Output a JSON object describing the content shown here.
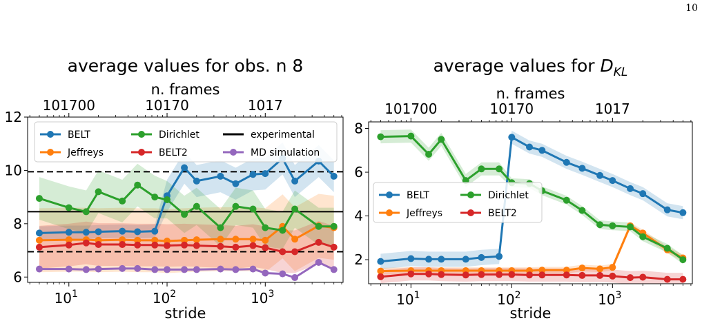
{
  "page": {
    "number": "10"
  },
  "colors": {
    "BELT": "#1f77b4",
    "Jeffreys": "#ff7f0e",
    "Dirichlet": "#2ca02c",
    "BELT2": "#d62728",
    "MD simulation": "#9467bd",
    "experimental": "#000000"
  },
  "chart_data": [
    {
      "type": "line",
      "title": "average values for obs. n 8",
      "xlabel": "stride",
      "ylabel": "",
      "xscale": "log",
      "xlim": [
        3.8,
        6200
      ],
      "ylim": [
        5.8,
        12
      ],
      "yticks": [
        6,
        8,
        10,
        12
      ],
      "ytick_labels": [
        "6",
        "8",
        "10",
        "12"
      ],
      "xticks": [
        10,
        100,
        1000
      ],
      "xtick_labels": [
        "10",
        "10",
        "10"
      ],
      "xtick_exponents": [
        "1",
        "2",
        "3"
      ],
      "top_axis": {
        "label": "n. frames",
        "ticks": [
          10,
          100,
          1000
        ],
        "tick_labels": [
          "101700",
          "10170",
          "1017"
        ]
      },
      "legend": {
        "placement": "top",
        "columns": 3
      },
      "hlines": [
        {
          "name": "experimental",
          "y": 8.45,
          "style": "solid"
        },
        {
          "name": "",
          "y": 9.95,
          "style": "dashed"
        },
        {
          "name": "",
          "y": 6.95,
          "style": "dashed"
        }
      ],
      "x": [
        5,
        10,
        15,
        20,
        35,
        50,
        75,
        100,
        150,
        200,
        350,
        500,
        750,
        1000,
        1500,
        2000,
        3500,
        5000
      ],
      "series": [
        {
          "name": "BELT",
          "color": "#1f77b4",
          "values": [
            7.65,
            7.68,
            7.68,
            7.7,
            7.72,
            7.7,
            7.72,
            9.05,
            10.1,
            9.6,
            9.78,
            9.5,
            9.85,
            9.88,
            10.45,
            9.6,
            10.35,
            9.78
          ],
          "band": [
            0.25,
            0.25,
            0.25,
            0.25,
            0.25,
            0.25,
            0.25,
            0.6,
            0.6,
            0.6,
            0.6,
            0.6,
            0.6,
            0.6,
            0.6,
            0.6,
            0.6,
            0.6
          ]
        },
        {
          "name": "Jeffreys",
          "color": "#ff7f0e",
          "values": [
            7.38,
            7.4,
            7.4,
            7.38,
            7.4,
            7.38,
            7.38,
            7.35,
            7.38,
            7.4,
            7.42,
            7.42,
            7.42,
            7.38,
            7.9,
            7.42,
            7.92,
            7.85
          ],
          "band": [
            1.2,
            1.2,
            1.2,
            1.2,
            1.2,
            1.2,
            1.2,
            1.2,
            1.2,
            1.2,
            1.2,
            1.2,
            1.2,
            1.2,
            1.2,
            1.2,
            1.2,
            1.2
          ]
        },
        {
          "name": "Dirichlet",
          "color": "#2ca02c",
          "values": [
            8.95,
            8.6,
            8.45,
            9.2,
            8.85,
            9.45,
            9.0,
            8.9,
            8.35,
            8.65,
            7.85,
            8.65,
            8.55,
            7.85,
            7.75,
            8.55,
            7.9,
            7.9
          ],
          "band": [
            0.8,
            0.8,
            0.8,
            0.8,
            0.8,
            0.8,
            0.8,
            0.7,
            0.7,
            0.7,
            0.7,
            0.7,
            0.7,
            0.7,
            0.7,
            0.7,
            0.7,
            0.7
          ]
        },
        {
          "name": "BELT2",
          "color": "#d62728",
          "values": [
            7.12,
            7.2,
            7.28,
            7.22,
            7.22,
            7.2,
            7.2,
            7.18,
            7.2,
            7.18,
            7.15,
            7.12,
            7.18,
            7.1,
            6.95,
            6.95,
            7.3,
            7.12
          ],
          "band": [
            0.8,
            0.8,
            0.8,
            0.8,
            0.8,
            0.8,
            0.8,
            0.8,
            0.8,
            0.8,
            0.8,
            0.8,
            0.8,
            0.8,
            0.8,
            0.8,
            0.8,
            0.8
          ]
        },
        {
          "name": "MD simulation",
          "color": "#9467bd",
          "values": [
            6.3,
            6.3,
            6.28,
            6.3,
            6.32,
            6.32,
            6.28,
            6.28,
            6.28,
            6.28,
            6.3,
            6.28,
            6.3,
            6.15,
            6.12,
            5.98,
            6.55,
            6.28
          ],
          "band": [
            0,
            0,
            0,
            0,
            0,
            0,
            0,
            0,
            0,
            0,
            0,
            0,
            0,
            0,
            0,
            0,
            0,
            0
          ]
        }
      ]
    },
    {
      "type": "line",
      "title": "average values for ",
      "title_math": "D",
      "title_math_sub": "KL",
      "xlabel": "stride",
      "ylabel": "",
      "xscale": "log",
      "xlim": [
        3.8,
        6200
      ],
      "ylim": [
        0.9,
        8.3
      ],
      "yticks": [
        2,
        4,
        6,
        8
      ],
      "ytick_labels": [
        "2",
        "4",
        "6",
        "8"
      ],
      "xticks": [
        10,
        100,
        1000
      ],
      "xtick_labels": [
        "10",
        "10",
        "10"
      ],
      "xtick_exponents": [
        "1",
        "2",
        "3"
      ],
      "top_axis": {
        "label": "n. frames",
        "ticks": [
          10,
          100,
          1000
        ],
        "tick_labels": [
          "101700",
          "10170",
          "1017"
        ]
      },
      "legend": {
        "placement": "center-left",
        "columns": 2
      },
      "hlines": [],
      "x": [
        5,
        10,
        15,
        20,
        35,
        50,
        75,
        100,
        150,
        200,
        350,
        500,
        750,
        1000,
        1500,
        2000,
        3500,
        5000
      ],
      "series": [
        {
          "name": "BELT",
          "color": "#1f77b4",
          "values": [
            1.92,
            2.05,
            2.02,
            2.02,
            2.02,
            2.1,
            2.15,
            7.6,
            7.15,
            7.0,
            6.45,
            6.18,
            5.85,
            5.62,
            5.25,
            5.02,
            4.28,
            4.15
          ],
          "band": [
            0.35,
            0.35,
            0.35,
            0.35,
            0.35,
            0.35,
            0.35,
            0.3,
            0.3,
            0.3,
            0.3,
            0.3,
            0.3,
            0.3,
            0.3,
            0.3,
            0.3,
            0.3
          ]
        },
        {
          "name": "Jeffreys",
          "color": "#ff7f0e",
          "values": [
            1.48,
            1.5,
            1.5,
            1.5,
            1.5,
            1.5,
            1.5,
            1.5,
            1.5,
            1.52,
            1.52,
            1.62,
            1.58,
            1.65,
            3.55,
            3.22,
            2.45,
            2.08
          ],
          "band": [
            0.15,
            0.15,
            0.15,
            0.15,
            0.15,
            0.15,
            0.15,
            0.15,
            0.15,
            0.15,
            0.15,
            0.15,
            0.15,
            0.15,
            0.15,
            0.15,
            0.15,
            0.15
          ]
        },
        {
          "name": "Dirichlet",
          "color": "#2ca02c",
          "values": [
            7.62,
            7.65,
            6.82,
            7.5,
            5.62,
            6.15,
            6.15,
            5.52,
            5.48,
            5.15,
            4.72,
            4.25,
            3.6,
            3.55,
            3.5,
            3.05,
            2.52,
            2.0
          ],
          "band": [
            0.3,
            0.3,
            0.3,
            0.3,
            0.3,
            0.3,
            0.3,
            0.2,
            0.2,
            0.2,
            0.2,
            0.2,
            0.2,
            0.2,
            0.2,
            0.2,
            0.2,
            0.2
          ]
        },
        {
          "name": "BELT2",
          "color": "#d62728",
          "values": [
            1.22,
            1.35,
            1.35,
            1.32,
            1.3,
            1.32,
            1.32,
            1.32,
            1.3,
            1.3,
            1.3,
            1.28,
            1.28,
            1.25,
            1.18,
            1.2,
            1.1,
            1.1
          ],
          "band": [
            0.3,
            0.3,
            0.3,
            0.3,
            0.3,
            0.3,
            0.3,
            0.3,
            0.3,
            0.3,
            0.3,
            0.3,
            0.3,
            0.3,
            0.3,
            0.3,
            0.3,
            0.3
          ]
        }
      ]
    }
  ]
}
